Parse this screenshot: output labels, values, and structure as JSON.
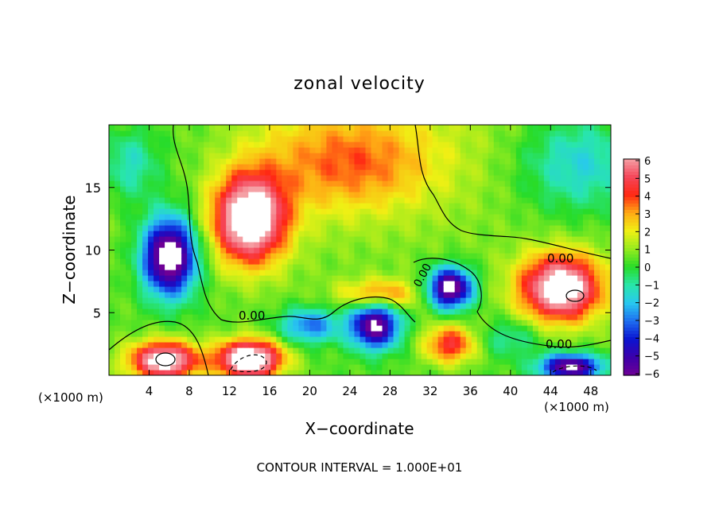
{
  "chart_data": {
    "type": "heatmap",
    "title": "zonal velocity",
    "xlabel": "X−coordinate",
    "ylabel": "Z−coordinate",
    "x_unit_left": "(×1000 m)",
    "x_unit_right": "(×1000 m)",
    "x_ticks": [
      4,
      8,
      12,
      16,
      20,
      24,
      28,
      32,
      36,
      40,
      44,
      48
    ],
    "y_ticks": [
      5,
      10,
      15
    ],
    "xlim": [
      0,
      50
    ],
    "ylim": [
      0,
      20
    ],
    "colorbar_ticks": [
      "6",
      "5",
      "4",
      "3",
      "2",
      "1",
      "0",
      "−1",
      "−2",
      "−3",
      "−4",
      "−5",
      "−6"
    ],
    "colorbar_range": [
      -6,
      6
    ],
    "contour_labels": [
      "0.00",
      "0.00",
      "0.00",
      "0.00"
    ],
    "footer": "CONTOUR INTERVAL = 1.000E+01",
    "blobs": [
      {
        "x": 24,
        "y": 17,
        "sx": 9,
        "sy": 4,
        "v": 2.8
      },
      {
        "x": 14,
        "y": 12.5,
        "sx": 3.6,
        "sy": 3.5,
        "v": 7.5
      },
      {
        "x": 6,
        "y": 9.5,
        "sx": 2.6,
        "sy": 3,
        "v": -8
      },
      {
        "x": 45,
        "y": 7,
        "sx": 4,
        "sy": 2.6,
        "v": 7.2
      },
      {
        "x": 34,
        "y": 7,
        "sx": 2.2,
        "sy": 1.6,
        "v": -7.5
      },
      {
        "x": 26.5,
        "y": 4,
        "sx": 2.4,
        "sy": 1.8,
        "v": -7
      },
      {
        "x": 5.5,
        "y": 1.2,
        "sx": 3.4,
        "sy": 1.5,
        "v": 7
      },
      {
        "x": 14,
        "y": 1.3,
        "sx": 3.2,
        "sy": 1.5,
        "v": 8
      },
      {
        "x": 46,
        "y": 0.7,
        "sx": 3,
        "sy": 1,
        "v": -7
      },
      {
        "x": 27,
        "y": 6.5,
        "sx": 4,
        "sy": 1.2,
        "v": 3
      },
      {
        "x": 34,
        "y": 2.5,
        "sx": 2.5,
        "sy": 1.5,
        "v": 4
      },
      {
        "x": 47,
        "y": 17,
        "sx": 6,
        "sy": 4,
        "v": -2.5
      },
      {
        "x": 2,
        "y": 17,
        "sx": 3,
        "sy": 3,
        "v": -2
      },
      {
        "x": 20,
        "y": 4,
        "sx": 3,
        "sy": 1.4,
        "v": -3.5
      },
      {
        "x": 40,
        "y": 3,
        "sx": 3,
        "sy": 1.5,
        "v": -1.5
      }
    ],
    "background_value": 0.4
  }
}
